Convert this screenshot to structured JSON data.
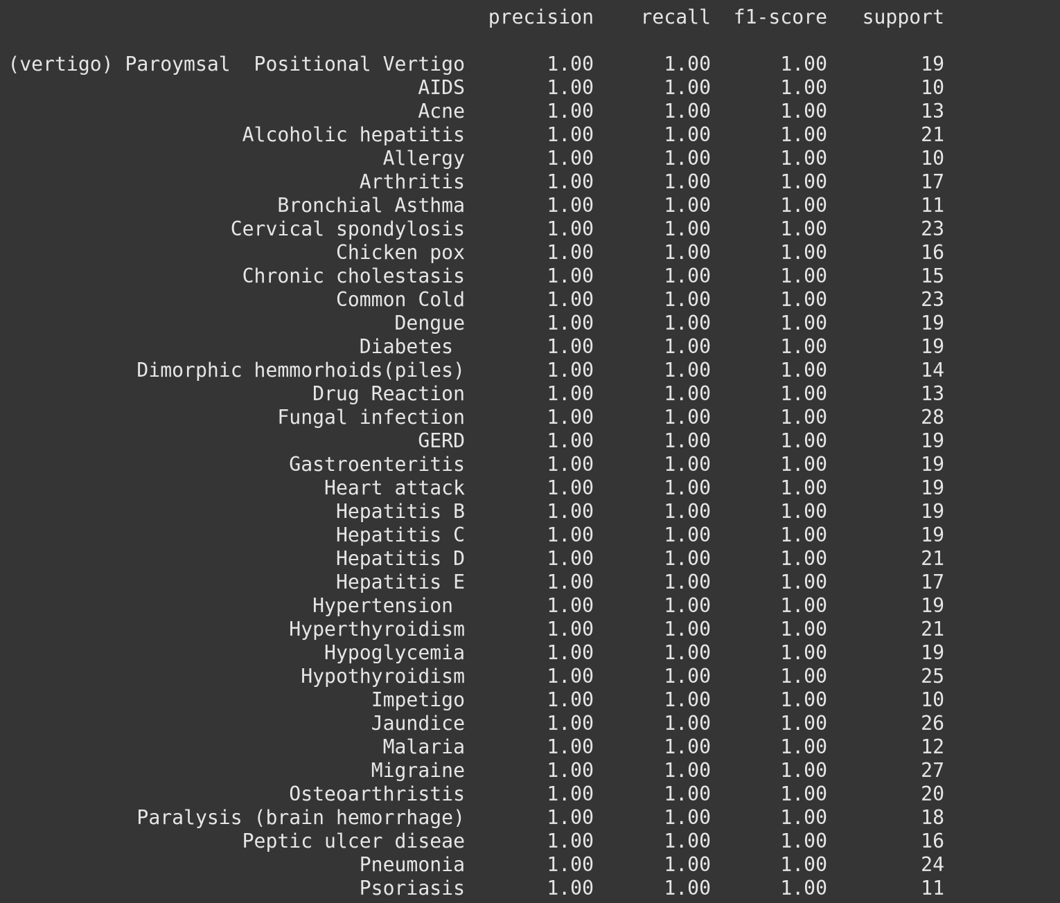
{
  "report": {
    "columns": [
      "precision",
      "recall",
      "f1-score",
      "support"
    ],
    "rows": [
      {
        "label": "(vertigo) Paroymsal  Positional Vertigo",
        "precision": "1.00",
        "recall": "1.00",
        "f1": "1.00",
        "support": "19"
      },
      {
        "label": "AIDS",
        "precision": "1.00",
        "recall": "1.00",
        "f1": "1.00",
        "support": "10"
      },
      {
        "label": "Acne",
        "precision": "1.00",
        "recall": "1.00",
        "f1": "1.00",
        "support": "13"
      },
      {
        "label": "Alcoholic hepatitis",
        "precision": "1.00",
        "recall": "1.00",
        "f1": "1.00",
        "support": "21"
      },
      {
        "label": "Allergy",
        "precision": "1.00",
        "recall": "1.00",
        "f1": "1.00",
        "support": "10"
      },
      {
        "label": "Arthritis",
        "precision": "1.00",
        "recall": "1.00",
        "f1": "1.00",
        "support": "17"
      },
      {
        "label": "Bronchial Asthma",
        "precision": "1.00",
        "recall": "1.00",
        "f1": "1.00",
        "support": "11"
      },
      {
        "label": "Cervical spondylosis",
        "precision": "1.00",
        "recall": "1.00",
        "f1": "1.00",
        "support": "23"
      },
      {
        "label": "Chicken pox",
        "precision": "1.00",
        "recall": "1.00",
        "f1": "1.00",
        "support": "16"
      },
      {
        "label": "Chronic cholestasis",
        "precision": "1.00",
        "recall": "1.00",
        "f1": "1.00",
        "support": "15"
      },
      {
        "label": "Common Cold",
        "precision": "1.00",
        "recall": "1.00",
        "f1": "1.00",
        "support": "23"
      },
      {
        "label": "Dengue",
        "precision": "1.00",
        "recall": "1.00",
        "f1": "1.00",
        "support": "19"
      },
      {
        "label": "Diabetes ",
        "precision": "1.00",
        "recall": "1.00",
        "f1": "1.00",
        "support": "19"
      },
      {
        "label": "Dimorphic hemmorhoids(piles)",
        "precision": "1.00",
        "recall": "1.00",
        "f1": "1.00",
        "support": "14"
      },
      {
        "label": "Drug Reaction",
        "precision": "1.00",
        "recall": "1.00",
        "f1": "1.00",
        "support": "13"
      },
      {
        "label": "Fungal infection",
        "precision": "1.00",
        "recall": "1.00",
        "f1": "1.00",
        "support": "28"
      },
      {
        "label": "GERD",
        "precision": "1.00",
        "recall": "1.00",
        "f1": "1.00",
        "support": "19"
      },
      {
        "label": "Gastroenteritis",
        "precision": "1.00",
        "recall": "1.00",
        "f1": "1.00",
        "support": "19"
      },
      {
        "label": "Heart attack",
        "precision": "1.00",
        "recall": "1.00",
        "f1": "1.00",
        "support": "19"
      },
      {
        "label": "Hepatitis B",
        "precision": "1.00",
        "recall": "1.00",
        "f1": "1.00",
        "support": "19"
      },
      {
        "label": "Hepatitis C",
        "precision": "1.00",
        "recall": "1.00",
        "f1": "1.00",
        "support": "19"
      },
      {
        "label": "Hepatitis D",
        "precision": "1.00",
        "recall": "1.00",
        "f1": "1.00",
        "support": "21"
      },
      {
        "label": "Hepatitis E",
        "precision": "1.00",
        "recall": "1.00",
        "f1": "1.00",
        "support": "17"
      },
      {
        "label": "Hypertension ",
        "precision": "1.00",
        "recall": "1.00",
        "f1": "1.00",
        "support": "19"
      },
      {
        "label": "Hyperthyroidism",
        "precision": "1.00",
        "recall": "1.00",
        "f1": "1.00",
        "support": "21"
      },
      {
        "label": "Hypoglycemia",
        "precision": "1.00",
        "recall": "1.00",
        "f1": "1.00",
        "support": "19"
      },
      {
        "label": "Hypothyroidism",
        "precision": "1.00",
        "recall": "1.00",
        "f1": "1.00",
        "support": "25"
      },
      {
        "label": "Impetigo",
        "precision": "1.00",
        "recall": "1.00",
        "f1": "1.00",
        "support": "10"
      },
      {
        "label": "Jaundice",
        "precision": "1.00",
        "recall": "1.00",
        "f1": "1.00",
        "support": "26"
      },
      {
        "label": "Malaria",
        "precision": "1.00",
        "recall": "1.00",
        "f1": "1.00",
        "support": "12"
      },
      {
        "label": "Migraine",
        "precision": "1.00",
        "recall": "1.00",
        "f1": "1.00",
        "support": "27"
      },
      {
        "label": "Osteoarthristis",
        "precision": "1.00",
        "recall": "1.00",
        "f1": "1.00",
        "support": "20"
      },
      {
        "label": "Paralysis (brain hemorrhage)",
        "precision": "1.00",
        "recall": "1.00",
        "f1": "1.00",
        "support": "18"
      },
      {
        "label": "Peptic ulcer diseae",
        "precision": "1.00",
        "recall": "1.00",
        "f1": "1.00",
        "support": "16"
      },
      {
        "label": "Pneumonia",
        "precision": "1.00",
        "recall": "1.00",
        "f1": "1.00",
        "support": "24"
      },
      {
        "label": "Psoriasis",
        "precision": "1.00",
        "recall": "1.00",
        "f1": "1.00",
        "support": "11"
      }
    ]
  }
}
